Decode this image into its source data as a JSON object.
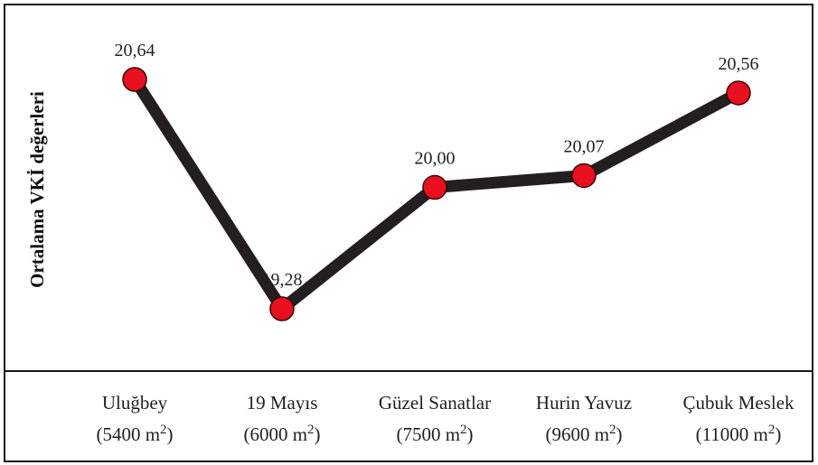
{
  "chart_data": {
    "type": "line",
    "ylabel": "Ortalama VKİ değerleri",
    "categories": [
      {
        "name": "Uluğbey",
        "area": "(5400 m",
        "sup": "2",
        "close": ")"
      },
      {
        "name": "19 Mayıs",
        "area": "(6000 m",
        "sup": "2",
        "close": ")"
      },
      {
        "name": "Güzel Sanatlar",
        "area": "(7500 m",
        "sup": "2",
        "close": ")"
      },
      {
        "name": "Hurin Yavuz",
        "area": "(9600 m",
        "sup": "2",
        "close": ")"
      },
      {
        "name": "Çubuk Meslek",
        "area": "(11000 m",
        "sup": "2",
        "close": ")"
      }
    ],
    "values": [
      20.64,
      19.28,
      20.0,
      20.07,
      20.56
    ],
    "value_labels": [
      "20,64",
      "19,28",
      "20,00",
      "20,07",
      "20,56"
    ],
    "ylim": [
      19.28,
      20.64
    ],
    "grid": false,
    "line_color": "#231f20",
    "marker_color": "#e8101f"
  }
}
